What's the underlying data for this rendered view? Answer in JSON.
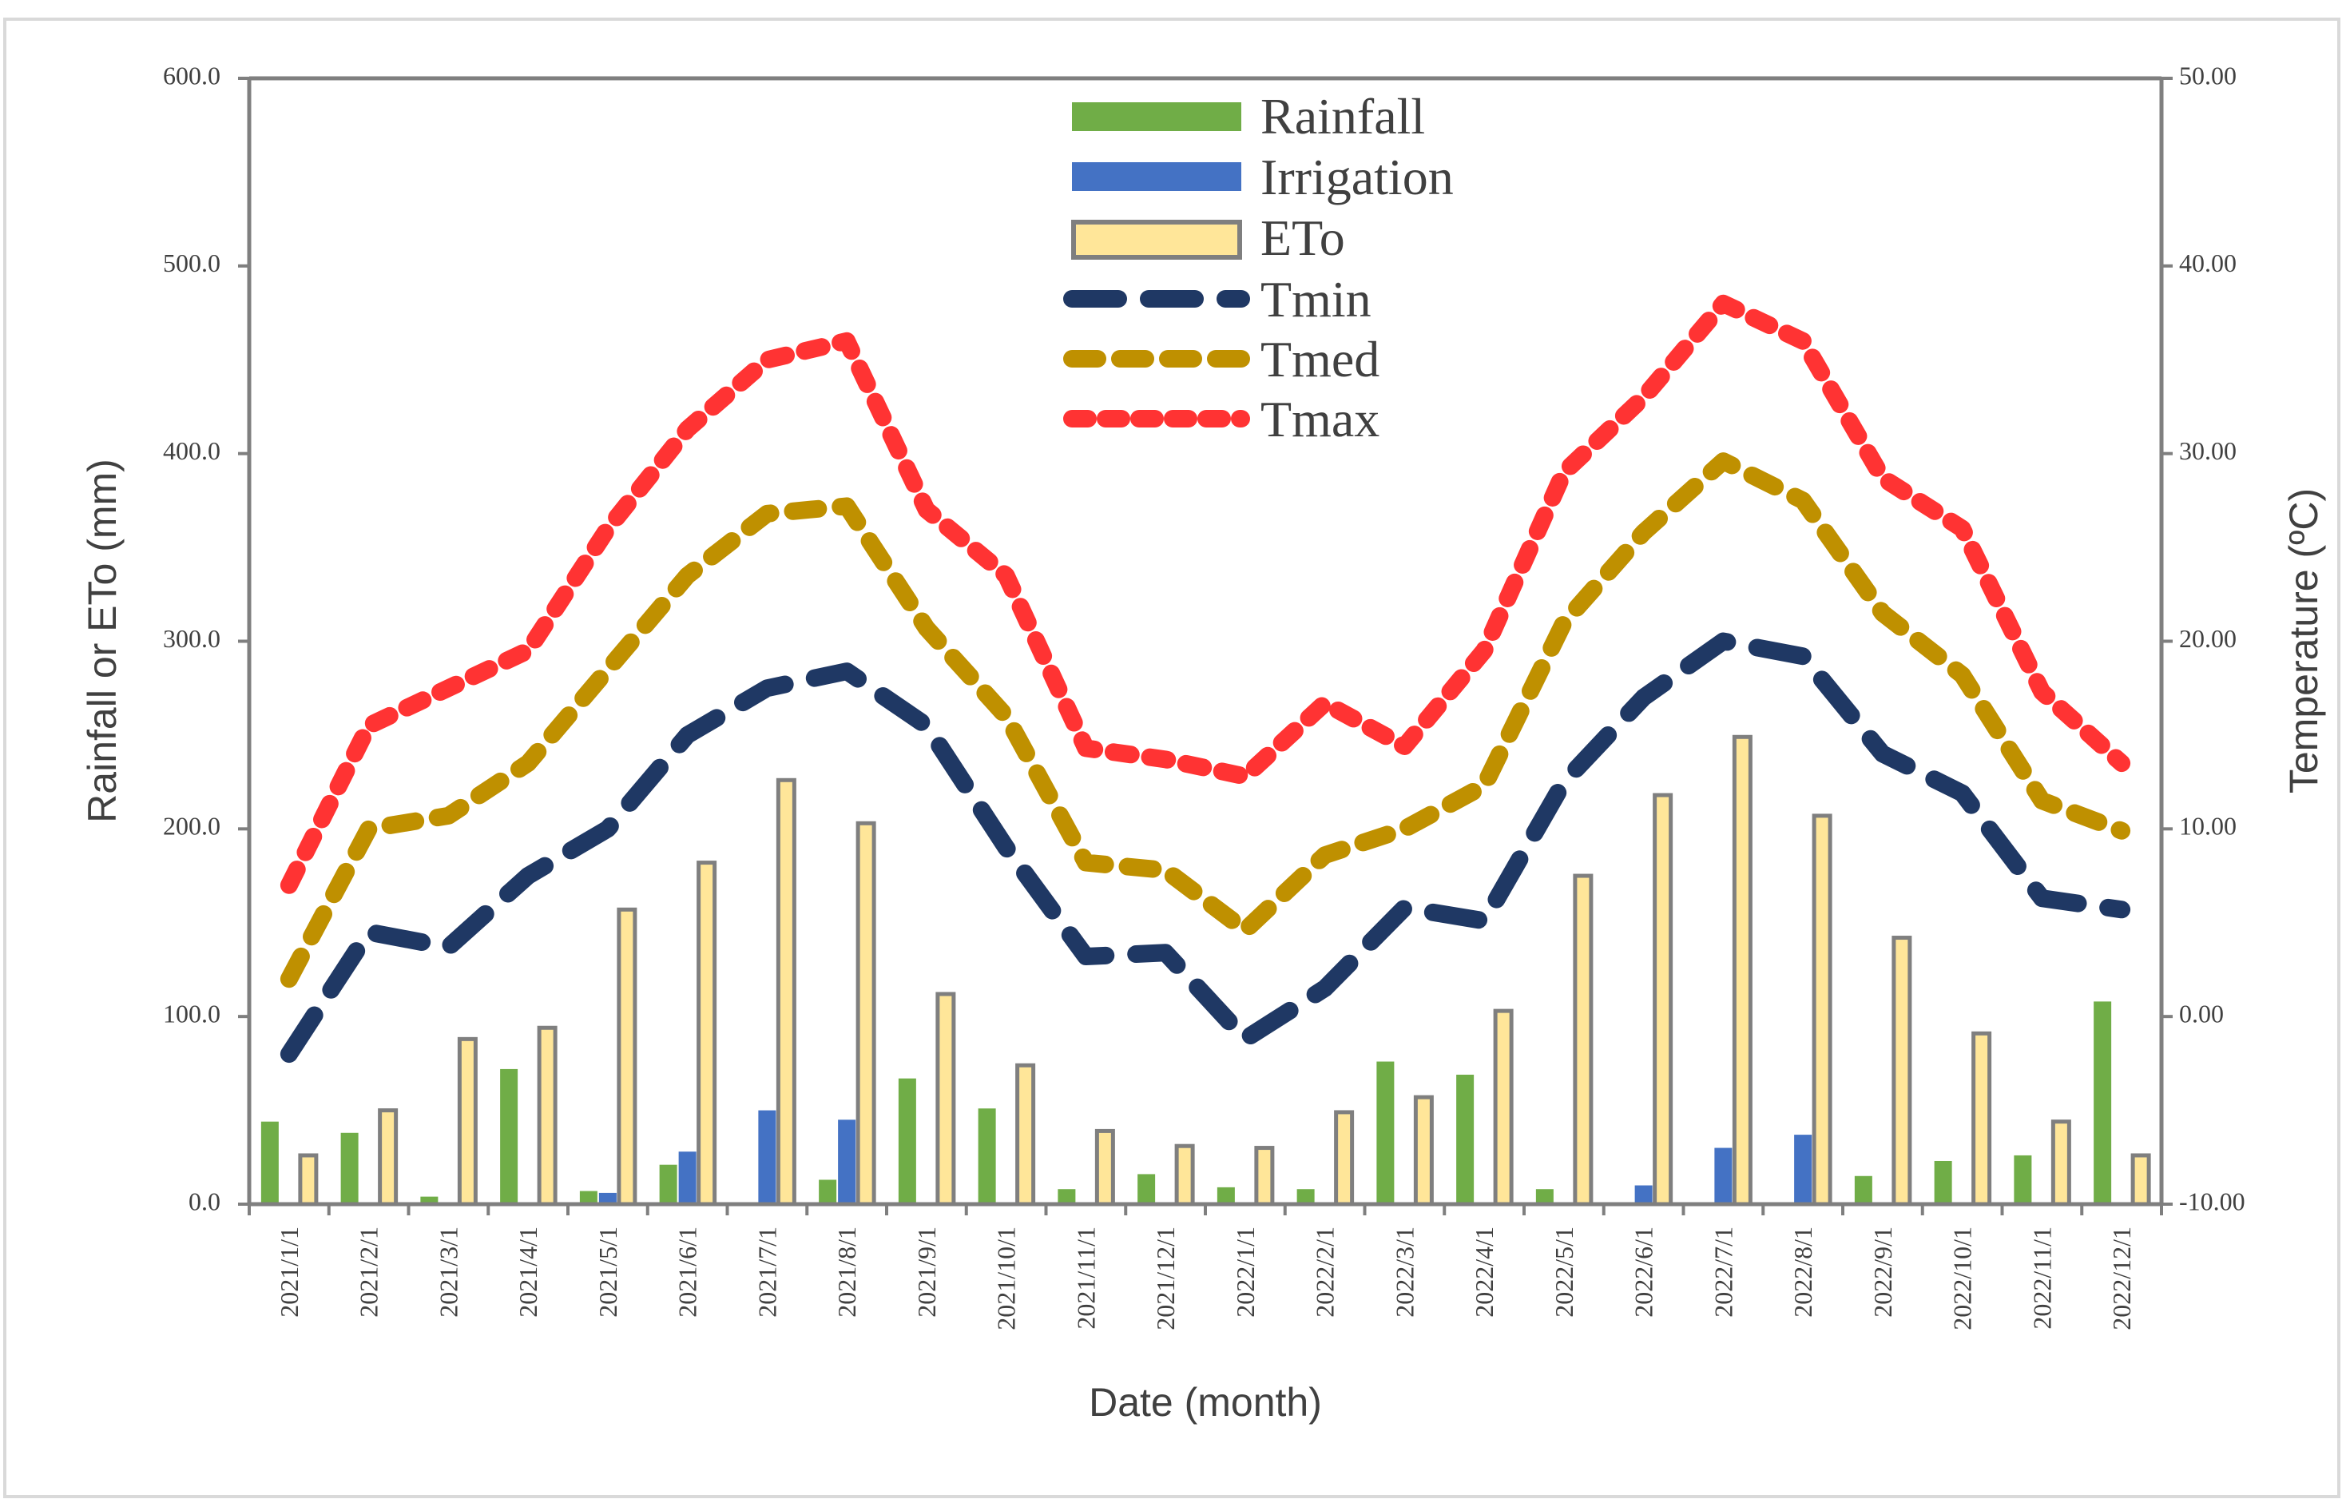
{
  "chart_data": {
    "type": "bar+line",
    "title": "",
    "categories": [
      "2021/1/1",
      "2021/2/1",
      "2021/3/1",
      "2021/4/1",
      "2021/5/1",
      "2021/6/1",
      "2021/7/1",
      "2021/8/1",
      "2021/9/1",
      "2021/10/1",
      "2021/11/1",
      "2021/12/1",
      "2022/1/1",
      "2022/2/1",
      "2022/3/1",
      "2022/4/1",
      "2022/5/1",
      "2022/6/1",
      "2022/7/1",
      "2022/8/1",
      "2022/9/1",
      "2022/10/1",
      "2022/11/1",
      "2022/12/1"
    ],
    "xlabel": "Date (month)",
    "ylabel_left": "Rainfall or ETo (mm)",
    "ylabel_right": "Temperature (ºC)",
    "ylim_left": [
      0,
      600
    ],
    "ylim_right": [
      -10,
      50
    ],
    "yticks_left": [
      "0.0",
      "100.0",
      "200.0",
      "300.0",
      "400.0",
      "500.0",
      "600.0"
    ],
    "yticks_right": [
      "-10.00",
      "0.00",
      "10.00",
      "20.00",
      "30.00",
      "40.00",
      "50.00"
    ],
    "grid": false,
    "legend_position": "top-center",
    "bar_series": [
      {
        "name": "Rainfall",
        "axis": "left",
        "color": "#70ad47",
        "values": [
          44,
          38,
          4,
          72,
          7,
          21,
          0,
          13,
          67,
          51,
          8,
          16,
          9,
          8,
          76,
          69,
          8,
          0,
          0,
          0,
          15,
          23,
          26,
          108
        ]
      },
      {
        "name": "Irrigation",
        "axis": "left",
        "color": "#4472c4",
        "values": [
          0,
          0,
          0,
          0,
          6,
          28,
          50,
          45,
          0,
          0,
          0,
          0,
          0,
          0,
          0,
          0,
          0,
          10,
          30,
          37,
          0,
          0,
          0,
          0
        ]
      },
      {
        "name": "ETo",
        "axis": "left",
        "color": "#ffe699",
        "edge": "#7f7f7f",
        "values": [
          26,
          50,
          88,
          94,
          157,
          182,
          226,
          203,
          112,
          74,
          39,
          31,
          30,
          49,
          57,
          103,
          175,
          218,
          249,
          207,
          142,
          91,
          44,
          26
        ]
      }
    ],
    "line_series": [
      {
        "name": "Tmin",
        "axis": "right",
        "color": "#1f3864",
        "style": "long-dash",
        "values": [
          -2,
          4.5,
          3.7,
          7.5,
          10,
          15,
          17.5,
          18.4,
          15.5,
          9,
          3.2,
          3.4,
          -1.2,
          1.5,
          5.8,
          5.1,
          12.5,
          17,
          20,
          19.2,
          14,
          11.9,
          6.3,
          5.7
        ]
      },
      {
        "name": "Tmed",
        "axis": "right",
        "color": "#bf9000",
        "style": "dash",
        "values": [
          2,
          10,
          10.7,
          13.5,
          18.5,
          23.5,
          26.8,
          27.2,
          20.7,
          16,
          8.2,
          7.8,
          4.6,
          8.6,
          10,
          12.3,
          21,
          25.8,
          29.6,
          27.5,
          21.5,
          18.2,
          11.5,
          9.9
        ]
      },
      {
        "name": "Tmax",
        "axis": "right",
        "color": "#ff3333",
        "style": "dash",
        "values": [
          7,
          15.5,
          17.5,
          19.5,
          26,
          31.3,
          35,
          36,
          27,
          23.5,
          14.3,
          13.7,
          12.8,
          16.7,
          14.4,
          19.5,
          29,
          33,
          38,
          36,
          28.7,
          26,
          17.3,
          13.5
        ]
      }
    ]
  }
}
